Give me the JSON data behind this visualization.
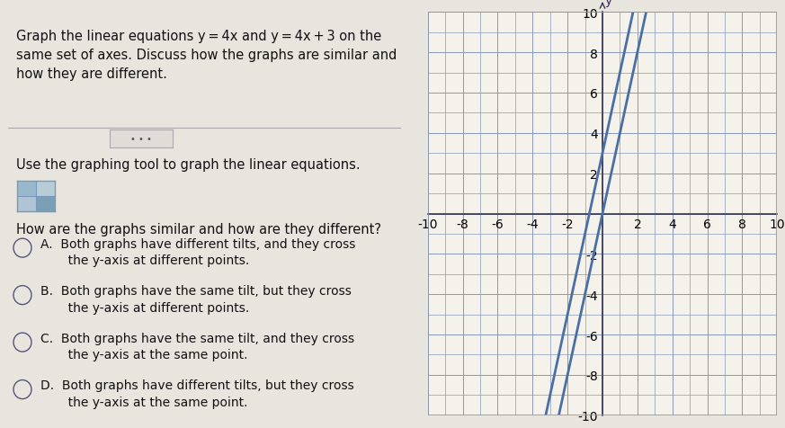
{
  "fig_width": 8.73,
  "fig_height": 4.77,
  "dpi": 100,
  "fig_bg": "#e8e5df",
  "left_bg": "#f0ede8",
  "right_bg": "#f0ede8",
  "graph_bg": "#f5f2ec",
  "graph_border": "#c0c0c0",
  "line_color": "#4a6fa5",
  "line_width": 2.0,
  "grid_color": "#8899bb",
  "grid_lw": 0.5,
  "axis_color": "#333355",
  "tick_color": "#333355",
  "text_color": "#111111",
  "xlim": [
    -10,
    10
  ],
  "ylim": [
    -10,
    10
  ],
  "line1_slope": 4,
  "line1_intercept": 0,
  "line2_slope": 4,
  "line2_intercept": 3,
  "title_text": "Graph the linear equations y = 4x and y = 4x + 3 on the\nsame set of axes. Discuss how the graphs are similar and\nhow they are different.",
  "subtitle": "Use the graphing tool to graph the linear equations.",
  "question": "How are the graphs similar and how are they different?",
  "option_A": "A.  Both graphs have different tilts, and they cross\n      the y-axis at different points.",
  "option_B": "B.  Both graphs have the same tilt, but they cross\n      the y-axis at different points.",
  "option_C": "C.  Both graphs have the same tilt, and they cross\n      the y-axis at the same point.",
  "option_D": "D.  Both graphs have different tilts, but they cross\n      the y-axis at the same point.",
  "tick_labels_x": [
    "-10",
    "-8",
    "-6",
    "-4",
    "-2",
    "",
    "2",
    "4",
    "6",
    "8",
    ""
  ],
  "tick_labels_y": [
    "-10",
    "-8",
    "-6",
    "-4",
    "-2",
    "",
    "2",
    "4",
    "6",
    "8",
    "10"
  ]
}
